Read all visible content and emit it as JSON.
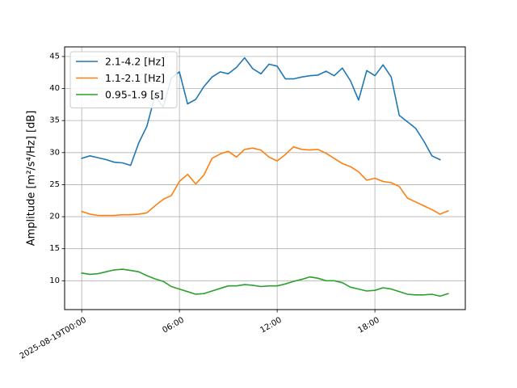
{
  "chart_data": {
    "type": "line",
    "title": "",
    "xlabel": "",
    "ylabel": "Amplitude [m²/s⁴/Hz] [dB]",
    "grid": true,
    "legend_position": "top-left",
    "x_unit": "hours",
    "xlim": [
      -1.05,
      23.55
    ],
    "ylim": [
      5.5,
      46.5
    ],
    "x_ticks": [
      {
        "value": 0,
        "label": "2025-08-19T00:00"
      },
      {
        "value": 6,
        "label": "06:00"
      },
      {
        "value": 12,
        "label": "12:00"
      },
      {
        "value": 18,
        "label": "18:00"
      }
    ],
    "y_ticks": [
      10,
      15,
      20,
      25,
      30,
      35,
      40,
      45
    ],
    "x": [
      0,
      0.5,
      1,
      1.5,
      2,
      2.5,
      3,
      3.5,
      4,
      4.5,
      5,
      5.5,
      6,
      6.5,
      7,
      7.5,
      8,
      8.5,
      9,
      9.5,
      10,
      10.5,
      11,
      11.5,
      12,
      12.5,
      13,
      13.5,
      14,
      14.5,
      15,
      15.5,
      16,
      16.5,
      17,
      17.5,
      18,
      18.5,
      19,
      19.5,
      20,
      20.5,
      21,
      21.5,
      22,
      22.5
    ],
    "series": [
      {
        "name": "2.1-4.2 [Hz]",
        "color": "#1f77b4",
        "values": [
          29.1,
          29.5,
          29.2,
          28.9,
          28.5,
          28.4,
          28.0,
          31.5,
          34.1,
          38.9,
          37.1,
          41.6,
          42.6,
          37.6,
          38.3,
          40.3,
          41.8,
          42.6,
          42.3,
          43.3,
          44.8,
          43.1,
          42.3,
          43.8,
          43.5,
          41.5,
          41.5,
          41.8,
          42.0,
          42.1,
          42.7,
          42.0,
          43.2,
          41.2,
          38.2,
          42.8,
          42.0,
          43.7,
          41.8,
          35.8,
          34.8,
          33.8,
          31.8,
          29.5,
          28.9,
          null
        ]
      },
      {
        "name": "1.1-2.1 [Hz]",
        "color": "#ff7f0e",
        "values": [
          20.8,
          20.4,
          20.2,
          20.2,
          20.2,
          20.3,
          20.3,
          20.4,
          20.6,
          21.7,
          22.7,
          23.3,
          25.5,
          26.6,
          25.1,
          26.5,
          29.1,
          29.8,
          30.2,
          29.3,
          30.5,
          30.7,
          30.4,
          29.3,
          28.7,
          29.7,
          30.9,
          30.5,
          30.4,
          30.5,
          29.9,
          29.1,
          28.3,
          27.8,
          27.0,
          25.7,
          26.0,
          25.5,
          25.3,
          24.7,
          22.9,
          22.3,
          21.7,
          21.1,
          20.4,
          20.9
        ]
      },
      {
        "name": "0.95-1.9 [s]",
        "color": "#2ca02c",
        "values": [
          11.2,
          11.0,
          11.1,
          11.4,
          11.7,
          11.8,
          11.6,
          11.4,
          10.8,
          10.3,
          9.9,
          9.1,
          8.7,
          8.3,
          7.9,
          8.0,
          8.4,
          8.8,
          9.2,
          9.2,
          9.4,
          9.3,
          9.1,
          9.2,
          9.2,
          9.5,
          9.9,
          10.2,
          10.6,
          10.4,
          10.0,
          10.0,
          9.7,
          9.0,
          8.7,
          8.4,
          8.5,
          8.9,
          8.7,
          8.3,
          7.9,
          7.8,
          7.8,
          7.9,
          7.6,
          8.0
        ]
      }
    ]
  }
}
